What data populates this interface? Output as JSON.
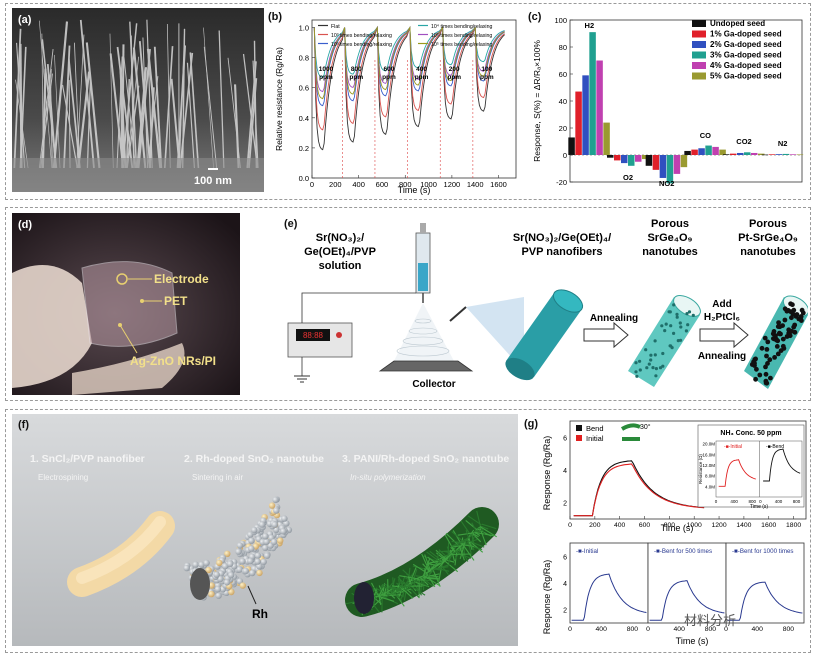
{
  "panel_a": {
    "letter": "(a)",
    "scale": "100 nm"
  },
  "panel_b": {
    "letter": "(b)",
    "xlabel": "Time (s)",
    "ylabel": "Relative resistance (Rₐ/Rₑ)",
    "ylabel_text": "Relative resistance (Rg/Ra)",
    "legend": [
      "Flat",
      "10³ times bending/relaxing",
      "10³ times bending/relaxing",
      "10⁴ times bending/relaxing",
      "10⁵ times bending/relaxing",
      "10⁵ times bending/relaxing"
    ],
    "legend_colors": [
      "#333333",
      "#d9534f",
      "#3a5fcd",
      "#2aa6a6",
      "#a050c0",
      "#9a9a20"
    ],
    "conc_labels": [
      "1000\nppm",
      "800\nppm",
      "600\nppm",
      "400\nppm",
      "200\nppm",
      "100\nppm"
    ],
    "conc_top": [
      "1000",
      "800",
      "600",
      "400",
      "200",
      "100"
    ],
    "conc_bot": "ppm",
    "xticks": [
      "0",
      "400",
      "800",
      "1200",
      "1600"
    ],
    "xticks2": [
      "200",
      "600",
      "1000",
      "1400"
    ],
    "yticks": [
      "0.0",
      "0.2",
      "0.4",
      "0.6",
      "0.8",
      "1.0"
    ]
  },
  "chart_data": [
    {
      "type": "bar",
      "title": "",
      "xlabel": "",
      "ylabel": "Response, S(%) = ΔR/Rₐ×100%",
      "ylim": [
        -20,
        100
      ],
      "yticks": [
        "-20",
        "0",
        "20",
        "40",
        "60",
        "80",
        "100"
      ],
      "categories": [
        "H₂",
        "O₂",
        "NO₂",
        "CO",
        "CO₂",
        "N₂"
      ],
      "series": [
        {
          "name": "Undoped seed",
          "color": "#111111",
          "values": [
            13,
            -2,
            -8,
            3,
            0.5,
            0.3
          ]
        },
        {
          "name": "1% Ga-doped seed",
          "color": "#e0202a",
          "values": [
            47,
            -4,
            -11,
            4,
            1,
            0.5
          ]
        },
        {
          "name": "2% Ga-doped seed",
          "color": "#3050c0",
          "values": [
            59,
            -6,
            -17,
            5,
            1.5,
            0.6
          ]
        },
        {
          "name": "3% Ga-doped seed",
          "color": "#20a090",
          "values": [
            91,
            -8,
            -21,
            7,
            2,
            0.8
          ]
        },
        {
          "name": "4% Ga-doped seed",
          "color": "#c040b0",
          "values": [
            70,
            -5,
            -14,
            6,
            1.5,
            0.5
          ]
        },
        {
          "name": "5% Ga-doped seed",
          "color": "#9a9a30",
          "values": [
            24,
            -3,
            -9,
            4,
            1,
            0.4
          ]
        }
      ],
      "legend": "top-right",
      "category_labels": [
        "H2",
        "O2",
        "NO2",
        "CO",
        "CO2",
        "N2"
      ]
    }
  ],
  "panel_c": {
    "letter": "(c)"
  },
  "panel_d": {
    "letter": "(d)",
    "labels": [
      "Electrode",
      "PET",
      "Ag-ZnO NRs/PI"
    ]
  },
  "panel_e": {
    "letter": "(e)",
    "solution": [
      "Sr(NO₃)₂/",
      "Ge(OEt)₄/PVP",
      "solution"
    ],
    "nanofibers": [
      "Sr(NO₃)₂/Ge(OEt)₄/",
      "PVP nanofibers"
    ],
    "porous1": [
      "Porous",
      "SrGe₄O₉",
      "nanotubes"
    ],
    "porous2": [
      "Porous",
      "Pt-SrGe₄O₉",
      "nanotubes"
    ],
    "collector": "Collector",
    "annealing": "Annealing",
    "add": [
      "Add",
      "H₂PtCl₆"
    ],
    "annealing2": "Annealing",
    "display": "88:88"
  },
  "panel_f": {
    "letter": "(f)",
    "step1": "1. SnCl₂/PVP nanofiber",
    "step1_sub": "Electrospining",
    "step2": "2. Rh-doped SnO₂ nanotube",
    "step2_sub": "Sintering in air",
    "step3": "3. PANI/Rh-doped SnO₂ nanotube",
    "step3_sub": "In-situ polymerization",
    "rh": "Rh"
  },
  "panel_g": {
    "letter": "(g)",
    "legend": [
      "Bend",
      "Initial"
    ],
    "angle": "30°",
    "inset_title": "NH₃ Conc. 50 ppm",
    "inset_legend": [
      "Initial",
      "Bend"
    ],
    "inset_ylabel": "Resistance (Ω)",
    "inset_xlabel": "Time (s)",
    "inset_yticks": [
      "4.0M",
      "8.0M",
      "12.0M",
      "16.0M",
      "20.0M"
    ],
    "inset_xticks": [
      "0",
      "400",
      "800"
    ],
    "ylabel": "Response (Rₐ/Rₑ)",
    "ylabel_text": "Response (Rg/Ra)",
    "xlabel": "Time (s)",
    "xticks": [
      "0",
      "200",
      "400",
      "600",
      "800",
      "1000",
      "1200",
      "1400",
      "1600",
      "1800"
    ],
    "yticks": [
      "2",
      "4",
      "6"
    ],
    "bottom_titles": [
      "Initial",
      "Bent for 500 times",
      "Bent for 1000 times"
    ],
    "bottom_yticks": [
      "2",
      "4",
      "6"
    ],
    "bottom_xticks": [
      "0",
      "400",
      "800"
    ]
  },
  "watermark": "材料分析"
}
